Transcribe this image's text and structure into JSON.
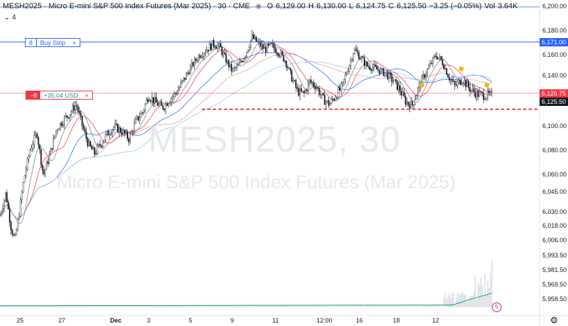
{
  "legend": {
    "symbol_title": "MESH2025 · Micro E-mini S&P 500 Index Futures (Mar 2025) · 30 · CME",
    "eye_icon": "eye-icon",
    "o_label": "O",
    "o_value": "6,129.00",
    "h_label": "H",
    "h_value": "6,130.00",
    "l_label": "L",
    "l_value": "6,124.75",
    "c_label": "C",
    "c_value": "6,125.50",
    "change": "−3.25 (−0.05%)",
    "vol_label": "Vol",
    "vol_value": "3.64K"
  },
  "indicators_collapsed": {
    "icon": "chevron-down-icon",
    "count": "4"
  },
  "watermark": {
    "line1": "MESH2025, 30",
    "line2": "Micro E-mini S&P 500 Index Futures (Mar 2025)"
  },
  "orders": {
    "buy_stop": {
      "qty": "8",
      "label": "Buy Stop",
      "close": "×",
      "price": 6171.0,
      "price_label": "6,171.00",
      "color": "#2962ff"
    },
    "position": {
      "qty": "−8",
      "pnl": "+35.04 USD",
      "close": "×",
      "price": 6126.75,
      "price_label": "6,126.75",
      "color": "#f23645"
    }
  },
  "last_price": {
    "value": 6125.5,
    "label": "6,125.50",
    "color": "#131722"
  },
  "alert_color": "#c41d8e",
  "chart_data": {
    "type": "candlestick",
    "interval": "30",
    "ylim": [
      5950,
      6205
    ],
    "y_ticks": [
      {
        "value": 6200,
        "label": "6,200.00"
      },
      {
        "value": 6180,
        "label": "6,180.00"
      },
      {
        "value": 6160,
        "label": "6,160.00"
      },
      {
        "value": 6140,
        "label": "6,140.00"
      },
      {
        "value": 6120,
        "label": "6,120.00"
      },
      {
        "value": 6100,
        "label": "6,100.00"
      },
      {
        "value": 6080,
        "label": "6,080.00"
      },
      {
        "value": 6060,
        "label": "6,060.00"
      },
      {
        "value": 6045,
        "label": "6,045.00"
      },
      {
        "value": 6030,
        "label": "6,030.00"
      },
      {
        "value": 6018,
        "label": "6,018.00"
      },
      {
        "value": 6006,
        "label": "6,006.00"
      },
      {
        "value": 5993.5,
        "label": "5,993.50"
      },
      {
        "value": 5981.5,
        "label": "5,981.50"
      },
      {
        "value": 5969.5,
        "label": "5,969.50"
      },
      {
        "value": 5958.5,
        "label": "5,958.50"
      }
    ],
    "x_ticks": [
      {
        "pos": 0.045,
        "label": "25",
        "bold": false
      },
      {
        "pos": 0.13,
        "label": "27",
        "bold": false
      },
      {
        "pos": 0.235,
        "label": "Dec",
        "bold": true
      },
      {
        "pos": 0.31,
        "label": "3",
        "bold": false
      },
      {
        "pos": 0.395,
        "label": "5",
        "bold": false
      },
      {
        "pos": 0.48,
        "label": "9",
        "bold": false
      },
      {
        "pos": 0.565,
        "label": "11",
        "bold": false
      },
      {
        "pos": 0.655,
        "label": "12:00",
        "bold": false
      },
      {
        "pos": 0.735,
        "label": "16",
        "bold": false
      },
      {
        "pos": 0.81,
        "label": "18",
        "bold": false
      },
      {
        "pos": 0.89,
        "label": "12",
        "bold": false
      }
    ],
    "price_path": [
      [
        0.0,
        6028
      ],
      [
        0.012,
        6045
      ],
      [
        0.022,
        6018
      ],
      [
        0.03,
        6006
      ],
      [
        0.04,
        6032
      ],
      [
        0.05,
        6060
      ],
      [
        0.062,
        6082
      ],
      [
        0.075,
        6095
      ],
      [
        0.088,
        6060
      ],
      [
        0.1,
        6075
      ],
      [
        0.115,
        6098
      ],
      [
        0.128,
        6105
      ],
      [
        0.14,
        6110
      ],
      [
        0.155,
        6118
      ],
      [
        0.168,
        6100
      ],
      [
        0.18,
        6085
      ],
      [
        0.192,
        6078
      ],
      [
        0.205,
        6086
      ],
      [
        0.218,
        6094
      ],
      [
        0.232,
        6100
      ],
      [
        0.248,
        6096
      ],
      [
        0.262,
        6090
      ],
      [
        0.276,
        6104
      ],
      [
        0.29,
        6112
      ],
      [
        0.302,
        6125
      ],
      [
        0.315,
        6120
      ],
      [
        0.33,
        6115
      ],
      [
        0.345,
        6122
      ],
      [
        0.36,
        6128
      ],
      [
        0.375,
        6138
      ],
      [
        0.39,
        6150
      ],
      [
        0.405,
        6160
      ],
      [
        0.42,
        6165
      ],
      [
        0.435,
        6170
      ],
      [
        0.448,
        6166
      ],
      [
        0.46,
        6155
      ],
      [
        0.472,
        6145
      ],
      [
        0.485,
        6150
      ],
      [
        0.5,
        6162
      ],
      [
        0.512,
        6175
      ],
      [
        0.525,
        6170
      ],
      [
        0.538,
        6165
      ],
      [
        0.552,
        6168
      ],
      [
        0.566,
        6163
      ],
      [
        0.58,
        6155
      ],
      [
        0.592,
        6140
      ],
      [
        0.605,
        6128
      ],
      [
        0.618,
        6126
      ],
      [
        0.63,
        6136
      ],
      [
        0.643,
        6132
      ],
      [
        0.657,
        6122
      ],
      [
        0.67,
        6118
      ],
      [
        0.683,
        6125
      ],
      [
        0.696,
        6132
      ],
      [
        0.708,
        6148
      ],
      [
        0.72,
        6165
      ],
      [
        0.733,
        6158
      ],
      [
        0.746,
        6150
      ],
      [
        0.76,
        6148
      ],
      [
        0.773,
        6145
      ],
      [
        0.786,
        6142
      ],
      [
        0.8,
        6136
      ],
      [
        0.812,
        6130
      ],
      [
        0.825,
        6120
      ],
      [
        0.838,
        6117
      ],
      [
        0.85,
        6130
      ],
      [
        0.862,
        6140
      ],
      [
        0.874,
        6150
      ],
      [
        0.886,
        6160
      ],
      [
        0.898,
        6155
      ],
      [
        0.912,
        6140
      ],
      [
        0.925,
        6132
      ],
      [
        0.94,
        6138
      ],
      [
        0.955,
        6130
      ],
      [
        0.97,
        6126
      ],
      [
        0.985,
        6125
      ]
    ],
    "moving_averages": [
      {
        "color": "#f23645",
        "period": 9
      },
      {
        "color": "#2962ff",
        "period": 21
      },
      {
        "color": "#ef9a9a",
        "period": 34
      },
      {
        "color": "#90caf9",
        "period": 50
      },
      {
        "color": "#787b86",
        "period": 5
      }
    ],
    "support_line": {
      "value": 6114,
      "color": "#f23645",
      "style": "dashed"
    },
    "markers": [
      {
        "x": 0.858,
        "y": 6133,
        "color": "#f5b700"
      },
      {
        "x": 0.938,
        "y": 6147,
        "color": "#f5b700"
      },
      {
        "x": 0.99,
        "y": 6133,
        "color": "#f5b700"
      }
    ],
    "volume_profile": {
      "baseline": 5952,
      "line_color": "#089981",
      "bar_color": "#cfd3dc",
      "spikes": [
        [
          0.93,
          0.05
        ],
        [
          0.95,
          0.04
        ],
        [
          0.975,
          0.35
        ],
        [
          0.99,
          0.12
        ],
        [
          1.0,
          0.55
        ]
      ]
    }
  }
}
